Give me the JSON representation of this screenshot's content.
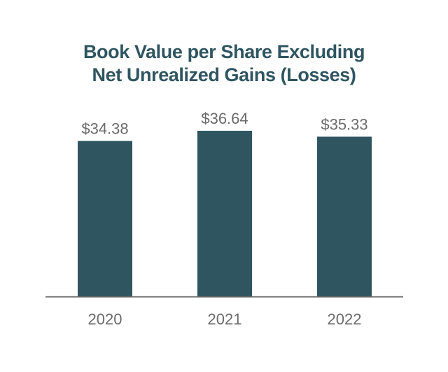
{
  "chart_data": {
    "type": "bar",
    "title": [
      "Book Value per Share Excluding",
      "Net Unrealized Gains (Losses)"
    ],
    "categories": [
      "2020",
      "2021",
      "2022"
    ],
    "values": [
      34.38,
      36.64,
      35.33
    ],
    "data_labels": [
      "$34.38",
      "$36.64",
      "$35.33"
    ],
    "ylim": [
      0,
      36.64
    ],
    "grid": false,
    "legend": "none",
    "bar_color": "#2f5561",
    "axis_color": "#6b6b6b",
    "label_color": "#6b6b6b"
  }
}
